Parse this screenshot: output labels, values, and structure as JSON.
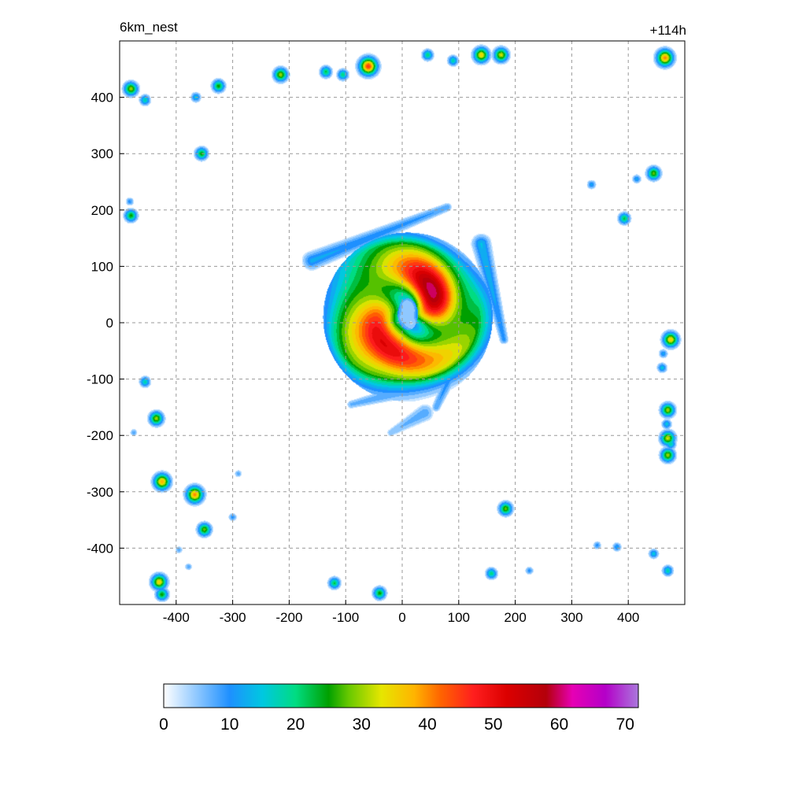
{
  "chart_data": {
    "type": "heatmap",
    "title_left": "6km_nest",
    "title_right": "+114h",
    "xlabel": "",
    "ylabel": "",
    "xlim": [
      -500,
      500
    ],
    "ylim": [
      -500,
      500
    ],
    "x_ticks": [
      -400,
      -300,
      -200,
      -100,
      0,
      100,
      200,
      300,
      400
    ],
    "y_ticks": [
      400,
      300,
      200,
      100,
      0,
      -100,
      -200,
      -300,
      -400
    ],
    "grid": true,
    "colorbar": {
      "min": 0,
      "max": 72,
      "ticks": [
        0,
        10,
        20,
        30,
        40,
        50,
        60,
        70
      ],
      "stops": [
        {
          "v": 0,
          "c": "#ffffff"
        },
        {
          "v": 5,
          "c": "#8fc8ff"
        },
        {
          "v": 10,
          "c": "#1e90ff"
        },
        {
          "v": 15,
          "c": "#00c8e0"
        },
        {
          "v": 20,
          "c": "#00dc82"
        },
        {
          "v": 25,
          "c": "#00a000"
        },
        {
          "v": 28,
          "c": "#66c800"
        },
        {
          "v": 33,
          "c": "#e6e600"
        },
        {
          "v": 38,
          "c": "#ffb400"
        },
        {
          "v": 42,
          "c": "#ff6400"
        },
        {
          "v": 47,
          "c": "#ff1e1e"
        },
        {
          "v": 52,
          "c": "#dc0000"
        },
        {
          "v": 58,
          "c": "#b4000a"
        },
        {
          "v": 62,
          "c": "#e600b4"
        },
        {
          "v": 67,
          "c": "#b400c8"
        },
        {
          "v": 72,
          "c": "#aa78dc"
        }
      ]
    },
    "features": {
      "storm_center": [
        10,
        10
      ],
      "eye": {
        "x": 10,
        "y": 15,
        "rx": 18,
        "ry": 28
      },
      "outer_envelope": {
        "x": 0,
        "y": 20,
        "rx": 170,
        "ry": 150
      },
      "rainbands": [
        {
          "from": [
            -160,
            110
          ],
          "to": [
            80,
            205
          ],
          "peak": 12
        },
        {
          "from": [
            140,
            140
          ],
          "to": [
            180,
            -30
          ],
          "peak": 14
        },
        {
          "from": [
            120,
            -20
          ],
          "to": [
            60,
            -150
          ],
          "peak": 12
        },
        {
          "from": [
            50,
            -110
          ],
          "to": [
            -90,
            -145
          ],
          "peak": 10
        },
        {
          "from": [
            40,
            -160
          ],
          "to": [
            -20,
            -195
          ],
          "peak": 8
        }
      ],
      "cells": [
        {
          "x": -480,
          "y": 415,
          "v": 30
        },
        {
          "x": -455,
          "y": 395,
          "v": 18
        },
        {
          "x": -365,
          "y": 400,
          "v": 15
        },
        {
          "x": -325,
          "y": 420,
          "v": 25
        },
        {
          "x": -215,
          "y": 440,
          "v": 30
        },
        {
          "x": -135,
          "y": 445,
          "v": 22
        },
        {
          "x": -105,
          "y": 440,
          "v": 20
        },
        {
          "x": -60,
          "y": 455,
          "v": 45
        },
        {
          "x": 45,
          "y": 475,
          "v": 20
        },
        {
          "x": 90,
          "y": 465,
          "v": 18
        },
        {
          "x": 140,
          "y": 475,
          "v": 35
        },
        {
          "x": 175,
          "y": 475,
          "v": 32
        },
        {
          "x": 465,
          "y": 470,
          "v": 40
        },
        {
          "x": -355,
          "y": 300,
          "v": 25
        },
        {
          "x": -480,
          "y": 190,
          "v": 25
        },
        {
          "x": -482,
          "y": 215,
          "v": 10
        },
        {
          "x": 335,
          "y": 245,
          "v": 12
        },
        {
          "x": 415,
          "y": 255,
          "v": 12
        },
        {
          "x": 445,
          "y": 265,
          "v": 28
        },
        {
          "x": 393,
          "y": 185,
          "v": 22
        },
        {
          "x": 475,
          "y": -30,
          "v": 35
        },
        {
          "x": 462,
          "y": -55,
          "v": 12
        },
        {
          "x": 460,
          "y": -80,
          "v": 15
        },
        {
          "x": 470,
          "y": -155,
          "v": 30
        },
        {
          "x": 468,
          "y": -180,
          "v": 15
        },
        {
          "x": 470,
          "y": -205,
          "v": 32
        },
        {
          "x": 470,
          "y": -235,
          "v": 30
        },
        {
          "x": 475,
          "y": -215,
          "v": 18
        },
        {
          "x": -455,
          "y": -105,
          "v": 18
        },
        {
          "x": -435,
          "y": -170,
          "v": 30
        },
        {
          "x": -475,
          "y": -195,
          "v": 8
        },
        {
          "x": -425,
          "y": -282,
          "v": 38
        },
        {
          "x": -367,
          "y": -305,
          "v": 40
        },
        {
          "x": -350,
          "y": -367,
          "v": 28
        },
        {
          "x": -300,
          "y": -345,
          "v": 10
        },
        {
          "x": -430,
          "y": -460,
          "v": 35
        },
        {
          "x": -425,
          "y": -482,
          "v": 25
        },
        {
          "x": -120,
          "y": -462,
          "v": 22
        },
        {
          "x": -40,
          "y": -480,
          "v": 25
        },
        {
          "x": 183,
          "y": -330,
          "v": 28
        },
        {
          "x": 158,
          "y": -445,
          "v": 20
        },
        {
          "x": 225,
          "y": -440,
          "v": 10
        },
        {
          "x": 345,
          "y": -395,
          "v": 10
        },
        {
          "x": 380,
          "y": -398,
          "v": 12
        },
        {
          "x": 445,
          "y": -410,
          "v": 15
        },
        {
          "x": 470,
          "y": -440,
          "v": 18
        },
        {
          "x": -395,
          "y": -403,
          "v": 8
        },
        {
          "x": -378,
          "y": -433,
          "v": 8
        },
        {
          "x": -290,
          "y": -268,
          "v": 8
        }
      ]
    }
  }
}
